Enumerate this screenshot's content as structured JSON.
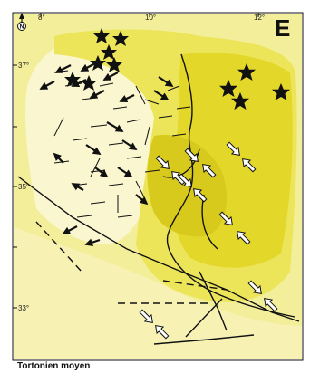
{
  "map": {
    "panel_letter": "E",
    "caption": "Tortonien moyen",
    "north_label": "N",
    "lon_ticks": [
      "8°",
      "10°",
      "12°"
    ],
    "lat_ticks": [
      "37°",
      "35°",
      "33°"
    ],
    "colors": {
      "background": "#f4ef9c",
      "pale_zone": "#fbf7d2",
      "mid_zone": "#ece65c",
      "deep_zone": "#e4d82a",
      "core_zone": "#d9cb1e",
      "lines": "#111111"
    },
    "legend_icons": [
      "star-icon",
      "compression-arrow-icon",
      "extension-arrow-icon"
    ]
  }
}
